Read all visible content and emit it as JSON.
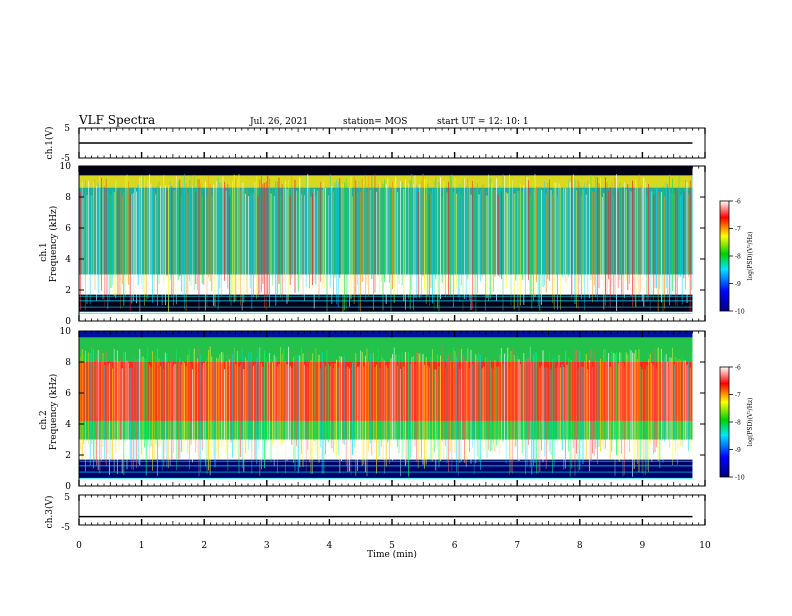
{
  "header": {
    "title": "VLF Spectra",
    "date": "Jul. 26, 2021",
    "station": "station= MOS",
    "start": "start UT =  12: 10: 1"
  },
  "chart_data": [
    {
      "type": "line",
      "panel": "ch1-waveform",
      "ylabel": "ch.1(V)",
      "yticks": [
        "5",
        "-5"
      ],
      "ylim": [
        -5,
        5
      ],
      "xlim": [
        0,
        10
      ],
      "series": [
        {
          "x": [
            0,
            9.8
          ],
          "y": [
            0,
            0
          ]
        }
      ]
    },
    {
      "type": "heatmap",
      "panel": "ch1-spectrogram",
      "ylabel": "Frequency (kHz)",
      "channel_label": "ch.1",
      "ylim": [
        0,
        10
      ],
      "yticks": [
        "0",
        "2",
        "4",
        "6",
        "8",
        "10"
      ],
      "xlim": [
        0,
        10
      ],
      "data_end_min": 9.8,
      "colorbar": {
        "label": "log(PSD)(V²/Hz)",
        "ticks": [
          "-6",
          "-7",
          "-8",
          "-9",
          "-10"
        ],
        "range": [
          -10,
          -6
        ]
      },
      "emission_band_khz": [
        3,
        9.5
      ]
    },
    {
      "type": "heatmap",
      "panel": "ch2-spectrogram",
      "ylabel": "Frequency (kHz)",
      "channel_label": "ch.2",
      "ylim": [
        0,
        10
      ],
      "yticks": [
        "0",
        "2",
        "4",
        "6",
        "8",
        "10"
      ],
      "xlim": [
        0,
        10
      ],
      "data_end_min": 9.8,
      "colorbar": {
        "label": "log(PSD)(V²/Hz)",
        "ticks": [
          "-6",
          "-7",
          "-8",
          "-9",
          "-10"
        ],
        "range": [
          -10,
          -6
        ]
      },
      "emission_band_khz": [
        3,
        9
      ]
    },
    {
      "type": "line",
      "panel": "ch3-waveform",
      "ylabel": "ch.3(V)",
      "yticks": [
        "5",
        "-5"
      ],
      "ylim": [
        -5,
        5
      ],
      "xlim": [
        0,
        10
      ],
      "xlabel": "Time (min)",
      "xticks": [
        "0",
        "1",
        "2",
        "3",
        "4",
        "5",
        "6",
        "7",
        "8",
        "9",
        "10"
      ],
      "series": [
        {
          "x": [
            0,
            9.8
          ],
          "y": [
            -2.2,
            -2.2
          ]
        }
      ]
    }
  ],
  "colors": {
    "black": "#000000",
    "navy": "#00007a",
    "blue": "#0000ff",
    "cyan": "#00e5ff",
    "green": "#00d000",
    "yellow": "#ffff00",
    "red": "#ff0000",
    "white": "#ffffff"
  }
}
